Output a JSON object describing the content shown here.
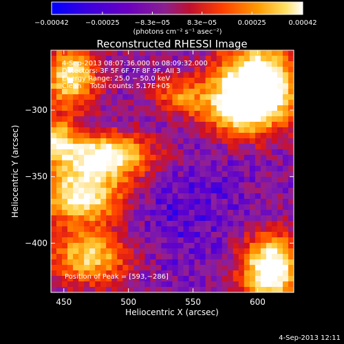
{
  "chart_data": {
    "type": "heatmap",
    "title": "Reconstructed RHESSI Image",
    "xlabel": "Heliocentric X (arcsec)",
    "ylabel": "Heliocentric Y (arcsec)",
    "xlim": [
      440,
      628
    ],
    "ylim": [
      -437,
      -255
    ],
    "x_ticks": [
      {
        "value": 450,
        "label": "450"
      },
      {
        "value": 500,
        "label": "500"
      },
      {
        "value": 550,
        "label": "550"
      },
      {
        "value": 600,
        "label": "600"
      }
    ],
    "y_ticks": [
      {
        "value": -300,
        "label": "−300"
      },
      {
        "value": -350,
        "label": "−350"
      },
      {
        "value": -400,
        "label": "−400"
      }
    ],
    "colorbar": {
      "range": [
        -0.00042,
        0.00042
      ],
      "ticks": [
        {
          "value": -0.00042,
          "label": "−0.00042"
        },
        {
          "value": -0.00025,
          "label": "−0.00025"
        },
        {
          "value": -8.3e-05,
          "label": "−8.3e−05"
        },
        {
          "value": 8.3e-05,
          "label": "8.3e−05"
        },
        {
          "value": 0.00025,
          "label": "0.00025"
        },
        {
          "value": 0.00042,
          "label": "0.00042"
        }
      ],
      "unit_label": "(photons cm⁻² s⁻¹ asec⁻²)",
      "colors": [
        "#0000ff",
        "#5a00d0",
        "#8a20a0",
        "#d01020",
        "#ff4000",
        "#ff9000",
        "#ffd040",
        "#ffffff"
      ]
    },
    "peak": {
      "x": 593,
      "y": -286
    }
  },
  "annotations": {
    "time_range": "4-Sep-2013 08:07:36.000 to 08:09:32.000",
    "detectors": "Detectors: 3F 5F 6F 7F 8F 9F, AII 3",
    "energy": "Energy Range: 25.0 − 50.0 keV",
    "clean": "Clean    Total counts: 5.17E+05",
    "peak_text": "Position of Peak = [593,−286]"
  },
  "footer_date": "4-Sep-2013 12:11"
}
